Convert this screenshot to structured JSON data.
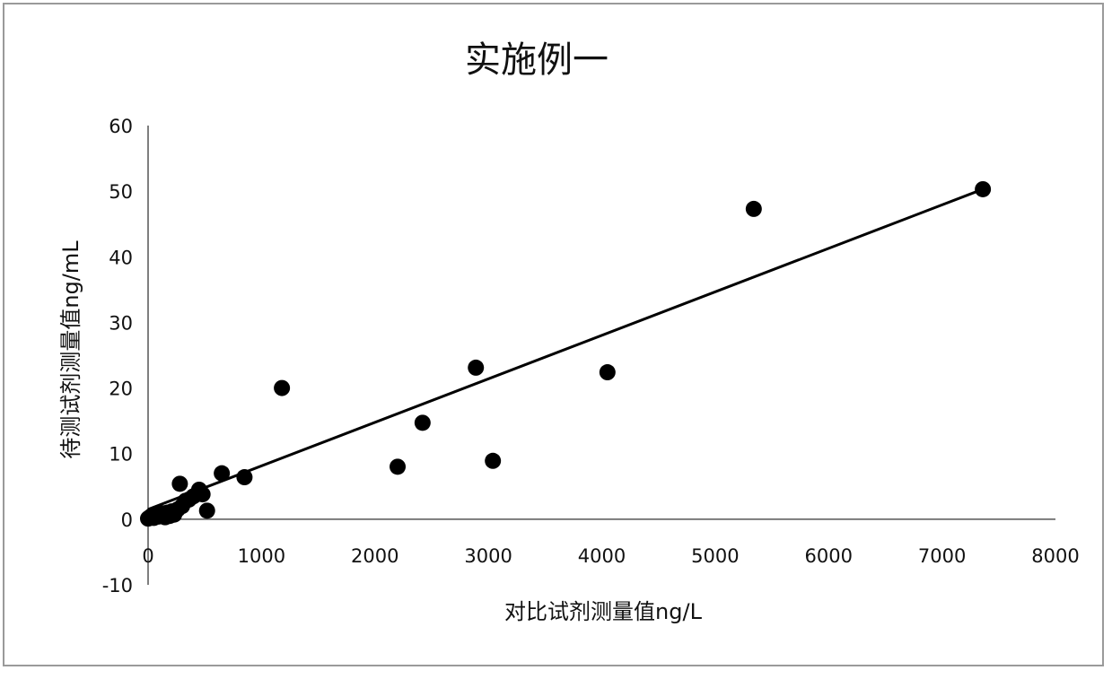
{
  "chart_data": {
    "type": "scatter",
    "title": "实施例一",
    "xlabel": "对比试剂测量值ng/L",
    "ylabel": "待测试剂测量值ng/mL",
    "xlim": [
      0,
      8000
    ],
    "ylim": [
      -10,
      60
    ],
    "xticks": [
      0,
      1000,
      2000,
      3000,
      4000,
      5000,
      6000,
      7000,
      8000
    ],
    "yticks": [
      -10,
      0,
      10,
      20,
      30,
      40,
      50,
      60
    ],
    "grid": false,
    "legend": "none",
    "colors": {
      "marker": "#000000",
      "line": "#000000",
      "axis": "#555555"
    },
    "points": [
      {
        "x": 0,
        "y": 0.1
      },
      {
        "x": 15,
        "y": 0.3
      },
      {
        "x": 30,
        "y": 0.5
      },
      {
        "x": 50,
        "y": 0.2
      },
      {
        "x": 70,
        "y": 0.8
      },
      {
        "x": 90,
        "y": 0.4
      },
      {
        "x": 110,
        "y": 0.6
      },
      {
        "x": 130,
        "y": 0.9
      },
      {
        "x": 150,
        "y": 0.3
      },
      {
        "x": 170,
        "y": 1.0
      },
      {
        "x": 190,
        "y": 0.5
      },
      {
        "x": 210,
        "y": 1.2
      },
      {
        "x": 230,
        "y": 0.7
      },
      {
        "x": 260,
        "y": 1.5
      },
      {
        "x": 280,
        "y": 5.4
      },
      {
        "x": 300,
        "y": 2.0
      },
      {
        "x": 330,
        "y": 2.8
      },
      {
        "x": 360,
        "y": 3.0
      },
      {
        "x": 400,
        "y": 3.5
      },
      {
        "x": 450,
        "y": 4.5
      },
      {
        "x": 480,
        "y": 3.8
      },
      {
        "x": 520,
        "y": 1.3
      },
      {
        "x": 650,
        "y": 7.0
      },
      {
        "x": 850,
        "y": 6.4
      },
      {
        "x": 1180,
        "y": 20.0
      },
      {
        "x": 2200,
        "y": 8.0
      },
      {
        "x": 2420,
        "y": 14.7
      },
      {
        "x": 2890,
        "y": 23.1
      },
      {
        "x": 3040,
        "y": 8.9
      },
      {
        "x": 4050,
        "y": 22.4
      },
      {
        "x": 5340,
        "y": 47.3
      },
      {
        "x": 7360,
        "y": 50.3
      }
    ],
    "trendline": {
      "type": "linear",
      "x": [
        0,
        7360
      ],
      "y": [
        1.5,
        50.3
      ]
    }
  }
}
